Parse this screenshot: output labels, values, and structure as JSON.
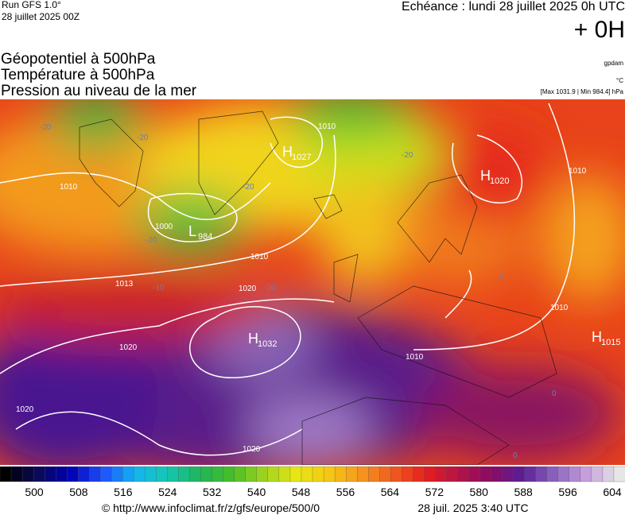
{
  "header": {
    "run": "Run GFS 1.0°",
    "date": "28 juillet 2025 00Z",
    "echeance": "Echéance : lundi 28 juillet 2025 0h UTC",
    "offset": "+ 0H",
    "titles": [
      "Géopotentiel à 500hPa",
      "Température à 500hPa",
      "Pression au niveau de la mer"
    ],
    "units": [
      "gpdam",
      "°C",
      "[Max 1031.9 | Min 984.4] hPa"
    ]
  },
  "map": {
    "centers": [
      {
        "letter": "H",
        "value": "1027"
      },
      {
        "letter": "L",
        "value": "984"
      },
      {
        "letter": "H",
        "value": "1020"
      },
      {
        "letter": "H",
        "value": "1032"
      },
      {
        "letter": "H",
        "value": "1015"
      }
    ],
    "isobar_labels": [
      "1010",
      "1000",
      "1013",
      "1020",
      "1020",
      "1020",
      "1020",
      "1010",
      "1010",
      "1010",
      "1010",
      "1010"
    ],
    "temperature_labels": [
      "-20",
      "-20",
      "-20",
      "-20",
      "-20",
      "-10",
      "-10",
      "0",
      "0",
      "0"
    ]
  },
  "colorbar": {
    "labels": [
      "500",
      "508",
      "516",
      "524",
      "532",
      "540",
      "548",
      "556",
      "564",
      "572",
      "580",
      "588",
      "596",
      "604"
    ]
  },
  "footer": {
    "url": "© http://www.infoclimat.fr/z/gfs/europe/500/0",
    "time": "28 juil. 2025  3:40 UTC"
  }
}
